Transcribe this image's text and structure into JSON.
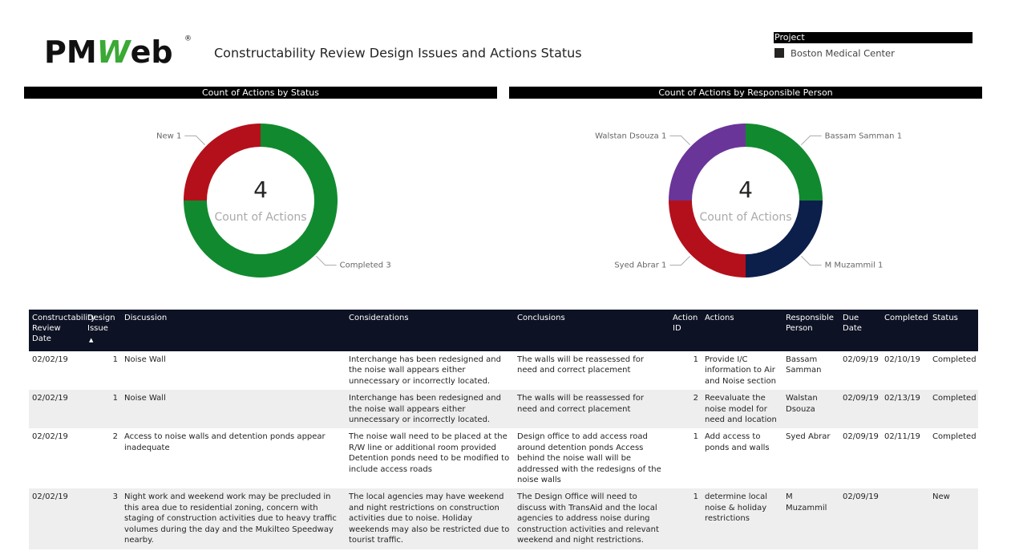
{
  "header": {
    "logo": {
      "left": "PM",
      "mark": "W",
      "right": "eb",
      "registered": "®"
    },
    "title": "Constructability Review Design Issues and Actions Status"
  },
  "slicer": {
    "title": "Project",
    "items": [
      "Boston Medical Center"
    ]
  },
  "chart_data": [
    {
      "type": "pie",
      "donut": true,
      "title": "Count of Actions by Status",
      "categories": [
        "Completed",
        "New"
      ],
      "values": [
        3,
        1
      ],
      "colors": [
        "#118a2f",
        "#b4101b"
      ],
      "center_value": 4,
      "center_label": "Count of Actions"
    },
    {
      "type": "pie",
      "donut": true,
      "title": "Count of Actions by Responsible Person",
      "categories": [
        "Bassam Samman",
        "M Muzammil",
        "Syed Abrar",
        "Walstan Dsouza"
      ],
      "values": [
        1,
        1,
        1,
        1
      ],
      "colors": [
        "#118a2f",
        "#0b1f4a",
        "#b4101b",
        "#6a3599"
      ],
      "center_value": 4,
      "center_label": "Count of Actions"
    }
  ],
  "table": {
    "columns": [
      "Constructability Review Date",
      "Design Issue",
      "Discussion",
      "Considerations",
      "Conclusions",
      "Action ID",
      "Actions",
      "Responsible Person",
      "Due Date",
      "Completed",
      "Status"
    ],
    "rows": [
      [
        "02/02/19",
        "1",
        "Noise Wall",
        "Interchange has been redesigned and the noise wall appears either unnecessary or incorrectly located.",
        "The walls will be reassessed for need and correct placement",
        "1",
        "Provide I/C information to Air and Noise section",
        "Bassam Samman",
        "02/09/19",
        "02/10/19",
        "Completed"
      ],
      [
        "02/02/19",
        "1",
        "Noise Wall",
        "Interchange has been redesigned and the noise wall appears either unnecessary or incorrectly located.",
        "The walls will be reassessed for need and correct placement",
        "2",
        "Reevaluate the noise model for need and location",
        "Walstan Dsouza",
        "02/09/19",
        "02/13/19",
        "Completed"
      ],
      [
        "02/02/19",
        "2",
        "Access to noise walls and detention ponds appear inadequate",
        "The noise wall need to be placed at the R/W line or additional room provided Detention ponds need to be modified to include access roads",
        "Design office to add access road around detention ponds Access behind the noise wall will be addressed with the redesigns of the noise walls",
        "1",
        "Add access to ponds and walls",
        "Syed Abrar",
        "02/09/19",
        "02/11/19",
        "Completed"
      ],
      [
        "02/02/19",
        "3",
        "Night work and weekend work may be precluded in this area due to residential zoning, concern with staging of construction activities due to heavy traffic volumes during the day and the Mukilteo Speedway nearby.",
        "The local agencies may have weekend and night restrictions on construction activities due to noise. Holiday weekends may also be restricted due to tourist traffic.",
        "The Design Office will need to discuss with TransAid and the local agencies to address noise during construction activities and relevant weekend and night restrictions.",
        "1",
        "determine local noise & holiday restrictions",
        "M Muzammil",
        "02/09/19",
        null,
        "New"
      ]
    ]
  }
}
